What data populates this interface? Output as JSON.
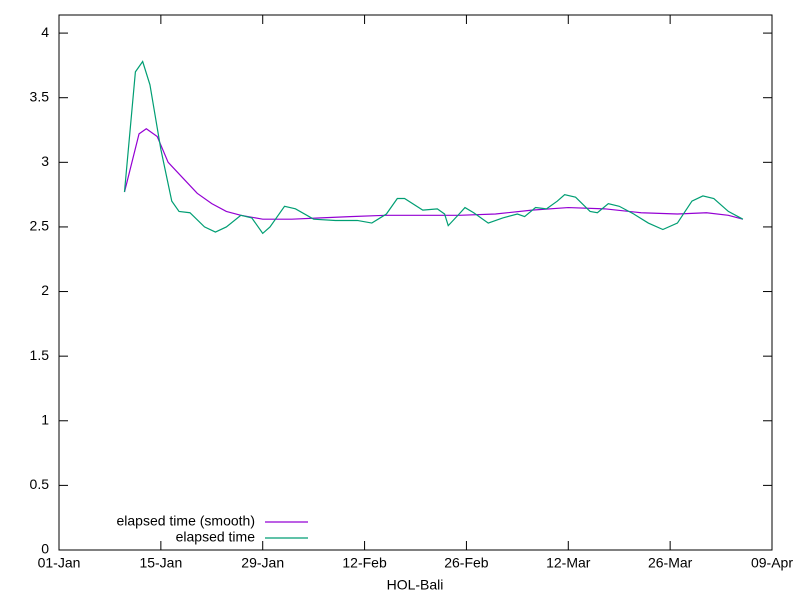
{
  "chart_data": {
    "type": "line",
    "xlabel": "HOL-Bali",
    "xlim": [
      0,
      98
    ],
    "xticks": [
      {
        "value": 0,
        "label": "01-Jan"
      },
      {
        "value": 14,
        "label": "15-Jan"
      },
      {
        "value": 28,
        "label": "29-Jan"
      },
      {
        "value": 42,
        "label": "12-Feb"
      },
      {
        "value": 56,
        "label": "26-Feb"
      },
      {
        "value": 70,
        "label": "12-Mar"
      },
      {
        "value": 84,
        "label": "26-Mar"
      },
      {
        "value": 98,
        "label": "09-Apr"
      }
    ],
    "ylim": [
      0,
      4.14
    ],
    "yticks": [
      0,
      0.5,
      1,
      1.5,
      2,
      2.5,
      3,
      3.5,
      4
    ],
    "legend": "bottom-left",
    "series": [
      {
        "name": "elapsed time (smooth)",
        "color": "#9400d3",
        "x": [
          9,
          11,
          12,
          13.5,
          15,
          17,
          19,
          21,
          23,
          25,
          28,
          32,
          36,
          40,
          45,
          55,
          60,
          65,
          70,
          75,
          80,
          85,
          89,
          92,
          94
        ],
        "values": [
          2.77,
          3.22,
          3.26,
          3.2,
          3.0,
          2.88,
          2.76,
          2.68,
          2.62,
          2.59,
          2.56,
          2.56,
          2.57,
          2.58,
          2.59,
          2.59,
          2.6,
          2.63,
          2.65,
          2.64,
          2.61,
          2.6,
          2.61,
          2.59,
          2.56
        ]
      },
      {
        "name": "elapsed time",
        "color": "#009e73",
        "x": [
          9,
          10.5,
          11.5,
          12.5,
          14,
          15.5,
          16.5,
          18,
          20,
          21.5,
          23,
          25,
          26.5,
          28,
          29,
          31,
          32.5,
          35,
          38,
          41,
          43,
          45,
          46.5,
          47.5,
          50,
          52,
          53,
          53.5,
          55,
          55.8,
          57,
          59,
          61,
          63,
          64,
          65.5,
          67,
          68.5,
          69.5,
          71,
          73,
          74,
          75.5,
          77,
          79,
          81,
          83,
          85,
          87,
          88.5,
          90,
          92,
          94
        ],
        "values": [
          2.77,
          3.7,
          3.78,
          3.6,
          3.1,
          2.7,
          2.62,
          2.61,
          2.5,
          2.46,
          2.5,
          2.59,
          2.57,
          2.45,
          2.5,
          2.66,
          2.64,
          2.56,
          2.55,
          2.55,
          2.53,
          2.6,
          2.72,
          2.72,
          2.63,
          2.64,
          2.6,
          2.51,
          2.6,
          2.65,
          2.61,
          2.53,
          2.57,
          2.6,
          2.58,
          2.65,
          2.64,
          2.7,
          2.75,
          2.73,
          2.62,
          2.61,
          2.68,
          2.66,
          2.6,
          2.53,
          2.48,
          2.53,
          2.7,
          2.74,
          2.72,
          2.62,
          2.56
        ]
      }
    ]
  }
}
